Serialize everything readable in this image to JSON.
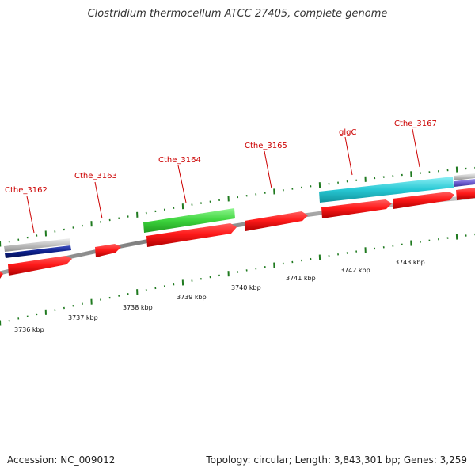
{
  "title": "Clostridium thermocellum ATCC 27405, complete genome",
  "accession": "Accession: NC_009012",
  "summary": "Topology: circular; Length: 3,843,301 bp; Genes: 3,259",
  "colors": {
    "label": "#cc0000",
    "tick": "#1f7a1f",
    "backbone": "#8a8a8a",
    "cds": "#ff1a1a",
    "green_gene": "#3dd43d",
    "cyan_gene": "#28c8d4",
    "navy_gene": "#0b1f8a",
    "grey_gene": "#c0c0c0",
    "purple_gene": "#6a5acd"
  },
  "scale_labels": [
    "3736 kbp",
    "3737 kbp",
    "3738 kbp",
    "3739 kbp",
    "3740 kbp",
    "3741 kbp",
    "3742 kbp",
    "3743 kbp"
  ],
  "gene_labels": [
    "Cthe_3162",
    "Cthe_3163",
    "Cthe_3164",
    "Cthe_3165",
    "glgC",
    "Cthe_3167"
  ]
}
